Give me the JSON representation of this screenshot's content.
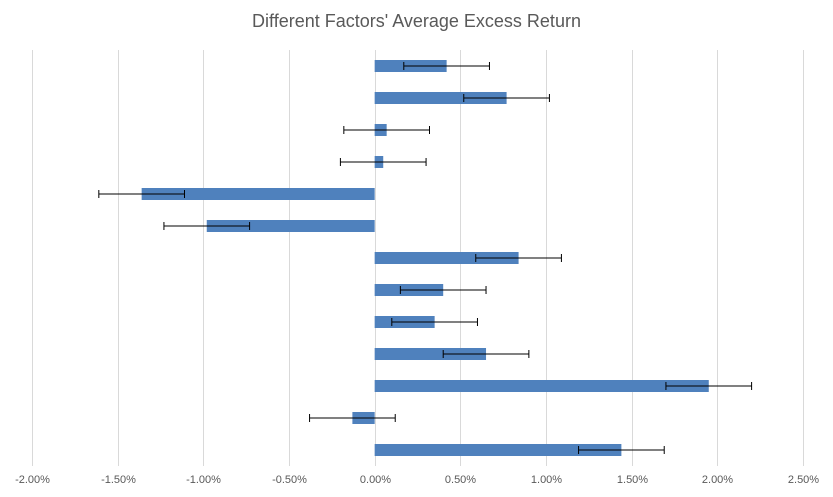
{
  "chart_data": {
    "type": "bar",
    "orientation": "horizontal",
    "title": "Different Factors' Average Excess Return",
    "xlabel": "",
    "ylabel": "",
    "xlim": [
      -0.02,
      0.025
    ],
    "x_tick_labels": [
      "-2.00%",
      "-1.50%",
      "-1.00%",
      "-0.50%",
      "0.00%",
      "0.50%",
      "1.00%",
      "1.50%",
      "2.00%",
      "2.50%"
    ],
    "x_ticks": [
      -0.02,
      -0.015,
      -0.01,
      -0.005,
      0,
      0.005,
      0.01,
      0.015,
      0.02,
      0.025
    ],
    "grid": "vertical",
    "legend": "none",
    "values": [
      0.0042,
      0.0077,
      0.0007,
      0.0005,
      -0.0136,
      -0.0098,
      0.0084,
      0.004,
      0.0035,
      0.0065,
      0.0195,
      -0.0013,
      0.0144
    ],
    "error_margin": [
      0.0025,
      0.0025,
      0.0025,
      0.0025,
      0.0025,
      0.0025,
      0.0025,
      0.0025,
      0.0025,
      0.0025,
      0.0025,
      0.0025,
      0.0025
    ],
    "colors": {
      "bar": "#4f81bd",
      "error_bar": "#000000",
      "grid": "#d9d9d9",
      "text": "#595959"
    }
  }
}
